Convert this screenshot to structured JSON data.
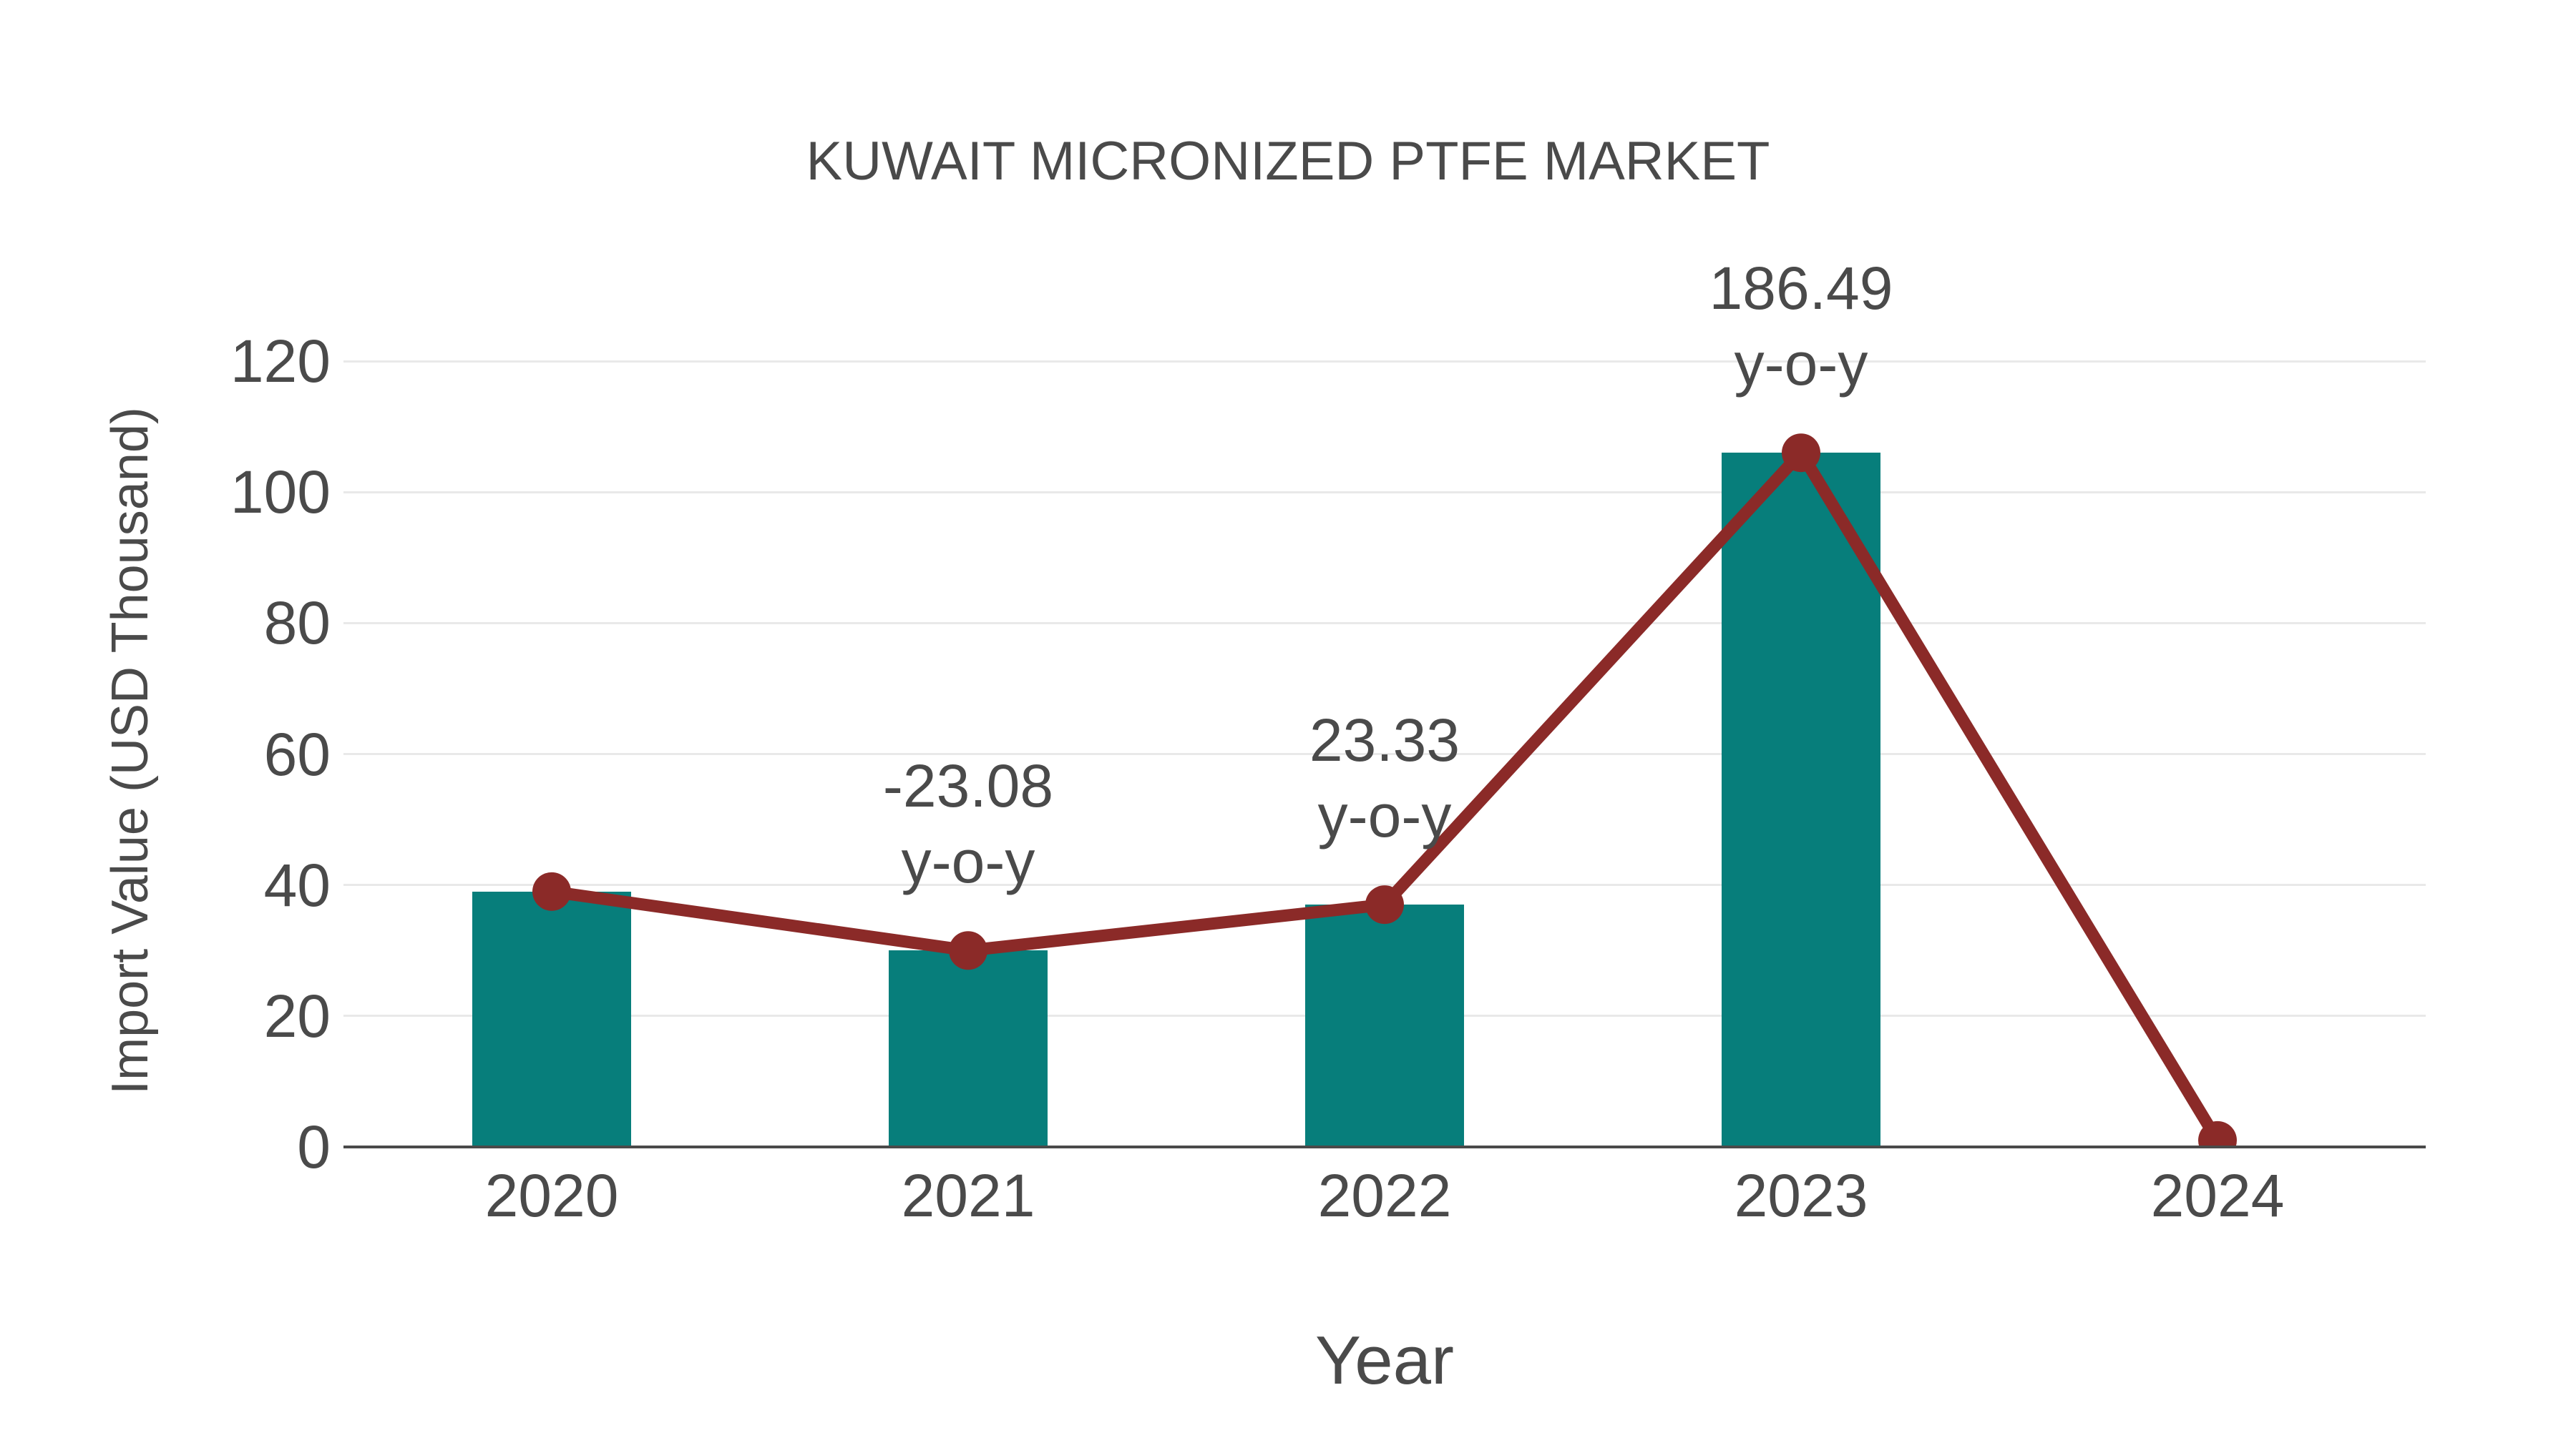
{
  "title": "KUWAIT MICRONIZED PTFE MARKET",
  "chart_data": {
    "type": "bar+line",
    "title": "KUWAIT MICRONIZED PTFE MARKET",
    "categories": [
      "2020",
      "2021",
      "2022",
      "2023",
      "2024"
    ],
    "bar_values": [
      39,
      30,
      37,
      106,
      null
    ],
    "line_values": [
      39,
      30,
      37,
      106,
      1
    ],
    "annotations": [
      {
        "category": "2021",
        "text": [
          "-23.08",
          "y-o-y"
        ]
      },
      {
        "category": "2022",
        "text": [
          "23.33",
          "y-o-y"
        ]
      },
      {
        "category": "2023",
        "text": [
          "186.49",
          "y-o-y"
        ]
      }
    ],
    "xlabel": "Year",
    "ylabel": "Import Value (USD Thousand)",
    "yticks": [
      0,
      20,
      40,
      60,
      80,
      100,
      120
    ],
    "ylim": [
      0,
      120
    ],
    "grid": "horizontal",
    "legend": "none",
    "background": "#ffffff"
  },
  "colors": {
    "bar": "#077e7b",
    "line": "#8b2a28",
    "text": "#4a4a4a",
    "grid": "#e9e9e9",
    "axis": "#4a4a4a",
    "background": "#ffffff"
  }
}
